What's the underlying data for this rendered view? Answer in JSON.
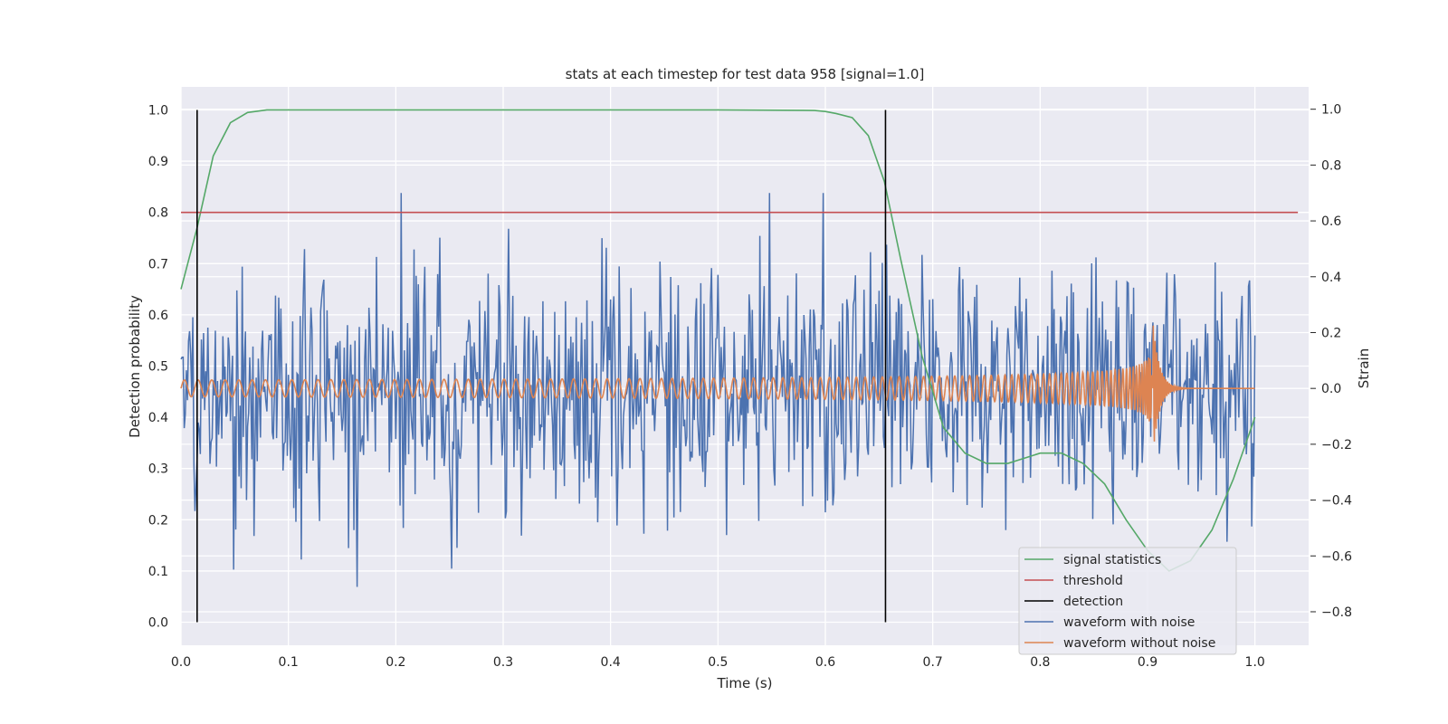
{
  "chart_data": {
    "type": "line",
    "title": "stats at each timestep for test data 958 [signal=1.0]",
    "xlabel": "Time (s)",
    "ylabel": "Detection probability",
    "y2label": "Strain",
    "xlim": [
      0.0,
      1.05
    ],
    "ylim": [
      -0.045,
      1.045
    ],
    "y2lim": [
      -0.92,
      1.08
    ],
    "xticks": [
      "0.0",
      "0.1",
      "0.2",
      "0.3",
      "0.4",
      "0.5",
      "0.6",
      "0.7",
      "0.8",
      "0.9",
      "1.0"
    ],
    "yticks": [
      "0.0",
      "0.1",
      "0.2",
      "0.3",
      "0.4",
      "0.5",
      "0.6",
      "0.7",
      "0.8",
      "0.9",
      "1.0"
    ],
    "y2ticks": [
      "−0.8",
      "−0.6",
      "−0.4",
      "−0.2",
      "0.0",
      "0.2",
      "0.4",
      "0.6",
      "0.8",
      "1.0"
    ],
    "grid": true,
    "legend_position": "lower-right",
    "colors": {
      "background": "#eaeaf2",
      "grid": "#ffffff",
      "signal": "#55a868",
      "threshold": "#c44e52",
      "detection": "#000000",
      "noisy": "#4c72b0",
      "clean": "#dd8452"
    },
    "series": [
      {
        "name": "signal statistics",
        "axis": "left",
        "x": [
          0.0,
          0.015,
          0.03,
          0.046,
          0.062,
          0.08,
          0.1,
          0.2,
          0.3,
          0.4,
          0.5,
          0.59,
          0.6,
          0.61,
          0.625,
          0.64,
          0.655,
          0.67,
          0.69,
          0.71,
          0.73,
          0.75,
          0.77,
          0.8,
          0.82,
          0.84,
          0.86,
          0.88,
          0.9,
          0.92,
          0.94,
          0.96,
          0.98,
          1.0
        ],
        "values": [
          0.65,
          0.77,
          0.91,
          0.975,
          0.995,
          1.0,
          1.0,
          1.0,
          1.0,
          1.0,
          1.0,
          0.999,
          0.997,
          0.993,
          0.985,
          0.95,
          0.86,
          0.71,
          0.52,
          0.38,
          0.33,
          0.31,
          0.31,
          0.33,
          0.33,
          0.31,
          0.27,
          0.2,
          0.14,
          0.1,
          0.12,
          0.18,
          0.28,
          0.4
        ]
      },
      {
        "name": "threshold",
        "axis": "left",
        "x": [
          0.0,
          1.04
        ],
        "values": [
          0.8,
          0.8
        ]
      },
      {
        "name": "detection",
        "axis": "left",
        "x": [
          0.015,
          0.656
        ],
        "values": [
          1.0,
          1.0
        ]
      },
      {
        "name": "waveform with noise",
        "axis": "right",
        "x_range": [
          0.0,
          1.0
        ],
        "amplitude": 0.3
      },
      {
        "name": "waveform without noise",
        "axis": "right",
        "x_range": [
          0.0,
          1.0
        ],
        "merger_time": 0.905
      }
    ]
  }
}
